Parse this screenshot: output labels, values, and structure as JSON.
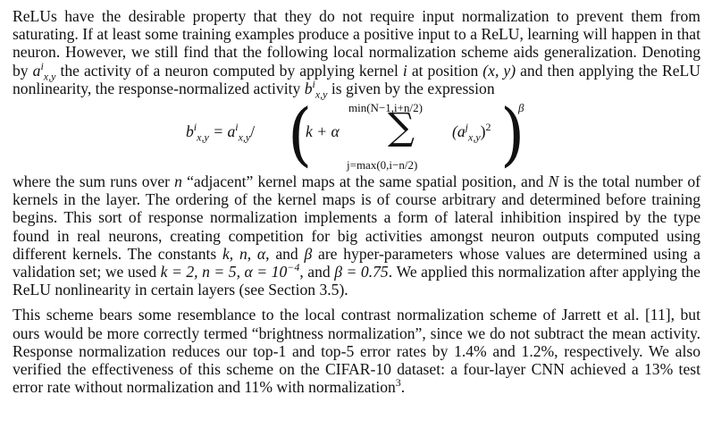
{
  "paragraph1": {
    "text_a": "ReLUs have the desirable property that they do not require input normalization to prevent them from saturating. If at least some training examples produce a positive input to a ReLU, learning will happen in that neuron. However, we still find that the following local normalization scheme aids generalization. Denoting by ",
    "text_b": " the activity of a neuron computed by applying kernel ",
    "text_c": " at position ",
    "text_d": " and then applying the ReLU nonlinearity, the response-normalized activity ",
    "text_e": " is given by the expression"
  },
  "equation": {
    "lhs": "b",
    "eq_mid": " = a",
    "slash": "/",
    "k_alpha": "k + α",
    "sum_upper": "min(N−1,i+n/2)",
    "sum_lower": "j=max(0,i−n/2)",
    "sigma": "∑",
    "term": "(a",
    "term_exp": ")",
    "square": "2",
    "beta": "β"
  },
  "paragraph2": {
    "text_a": "where the sum runs over ",
    "text_b": " “adjacent” kernel maps at the same spatial position, and ",
    "text_c": " is the total number of kernels in the layer. The ordering of the kernel maps is of course arbitrary and determined before training begins. This sort of response normalization implements a form of lateral inhibition inspired by the type found in real neurons, creating competition for big activities amongst neuron outputs computed using different kernels. The constants ",
    "text_d": " are hyper-parameters whose values are determined using a validation set; we used ",
    "text_e": ", and ",
    "text_f": ". We applied this normalization after applying the ReLU nonlinearity in certain layers (see Section 3.5)."
  },
  "paragraph3": {
    "text": "This scheme bears some resemblance to the local contrast normalization scheme of Jarrett et al. [11], but ours would be more correctly termed “brightness normalization”, since we do not subtract the mean activity. Response normalization reduces our top-1 and top-5 error rates by 1.4% and 1.2%, respectively. We also verified the effectiveness of this scheme on the CIFAR-10 dataset: a four-layer CNN achieved a 13% test error rate without normalization and 11% with normalization",
    "footnote": "3",
    "end": "."
  },
  "math": {
    "a": "a",
    "sup_i": "i",
    "sub_xy": "x,y",
    "sub_xy2": "x,y",
    "i": "i",
    "xy": "(x, y)",
    "b": "b",
    "sup_j": "j",
    "n": "n",
    "N": "N",
    "constants": "k, n, α,",
    "and": " and ",
    "beta": "β",
    "k_val": "k = 2, n = 5, α = 10",
    "k_exp": "−4",
    "beta_val": "β = 0.75"
  }
}
